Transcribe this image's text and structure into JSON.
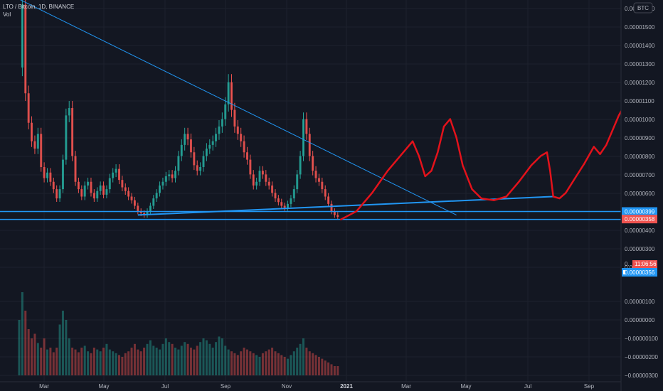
{
  "legend": {
    "symbol_line": "LTO / Bitcoin, 1D, BINANCE",
    "volume_label": "Vol"
  },
  "currency_badge": "BTC",
  "chart_data": {
    "type": "candlestick",
    "title": "LTO / Bitcoin, 1D, BINANCE",
    "price_axis_ticks": [
      "0.00001600",
      "0.00001500",
      "0.00001400",
      "0.00001300",
      "0.00001200",
      "0.00001100",
      "0.00001000",
      "0.00000900",
      "0.00000800",
      "0.00000700",
      "0.00000600",
      "0.00000500",
      "0.00000400",
      "0.00000300",
      "0.00000200"
    ],
    "volume_axis_ticks": [
      "0.00000100",
      "0.00000000",
      "−0.00000100",
      "−0.00000200",
      "−0.00000300"
    ],
    "x_ticks": [
      "Mar",
      "May",
      "Jul",
      "Sep",
      "Nov",
      "2021",
      "Mar",
      "May",
      "Jul",
      "Sep"
    ],
    "price_tags": {
      "resistance": "0.00000399",
      "last_price": "0.00000358",
      "countdown": "11:06:56",
      "support": "0.00000356",
      "partial_tick": "0."
    },
    "price_path": [
      [
        0,
        1180
      ],
      [
        1,
        1520
      ],
      [
        2,
        1040
      ],
      [
        3,
        880
      ],
      [
        4,
        780
      ],
      [
        5,
        740
      ],
      [
        6,
        820
      ],
      [
        7,
        640
      ],
      [
        8,
        580
      ],
      [
        9,
        610
      ],
      [
        10,
        560
      ],
      [
        11,
        520
      ],
      [
        12,
        470
      ],
      [
        13,
        520
      ],
      [
        14,
        680
      ],
      [
        15,
        920
      ],
      [
        16,
        960
      ],
      [
        17,
        700
      ],
      [
        18,
        560
      ],
      [
        19,
        520
      ],
      [
        20,
        480
      ],
      [
        21,
        540
      ],
      [
        22,
        560
      ],
      [
        23,
        500
      ],
      [
        24,
        470
      ],
      [
        25,
        510
      ],
      [
        26,
        540
      ],
      [
        27,
        490
      ],
      [
        28,
        520
      ],
      [
        29,
        580
      ],
      [
        30,
        610
      ],
      [
        31,
        630
      ],
      [
        32,
        570
      ],
      [
        33,
        530
      ],
      [
        34,
        510
      ],
      [
        35,
        480
      ],
      [
        36,
        460
      ],
      [
        37,
        430
      ],
      [
        38,
        400
      ],
      [
        39,
        390
      ],
      [
        40,
        380
      ],
      [
        41,
        400
      ],
      [
        42,
        430
      ],
      [
        43,
        470
      ],
      [
        44,
        500
      ],
      [
        45,
        540
      ],
      [
        46,
        560
      ],
      [
        47,
        590
      ],
      [
        48,
        600
      ],
      [
        49,
        580
      ],
      [
        50,
        620
      ],
      [
        51,
        700
      ],
      [
        52,
        760
      ],
      [
        53,
        820
      ],
      [
        54,
        790
      ],
      [
        55,
        720
      ],
      [
        56,
        650
      ],
      [
        57,
        620
      ],
      [
        58,
        640
      ],
      [
        59,
        700
      ],
      [
        60,
        740
      ],
      [
        61,
        760
      ],
      [
        62,
        780
      ],
      [
        63,
        820
      ],
      [
        64,
        860
      ],
      [
        65,
        900
      ],
      [
        66,
        980
      ],
      [
        67,
        1100
      ],
      [
        68,
        950
      ],
      [
        69,
        860
      ],
      [
        70,
        820
      ],
      [
        71,
        780
      ],
      [
        72,
        720
      ],
      [
        73,
        680
      ],
      [
        74,
        600
      ],
      [
        75,
        540
      ],
      [
        76,
        560
      ],
      [
        77,
        620
      ],
      [
        78,
        600
      ],
      [
        79,
        560
      ],
      [
        80,
        540
      ],
      [
        81,
        500
      ],
      [
        82,
        470
      ],
      [
        83,
        450
      ],
      [
        84,
        430
      ],
      [
        85,
        420
      ],
      [
        86,
        440
      ],
      [
        87,
        470
      ],
      [
        88,
        520
      ],
      [
        89,
        600
      ],
      [
        90,
        700
      ],
      [
        91,
        900
      ],
      [
        92,
        820
      ],
      [
        93,
        700
      ],
      [
        94,
        620
      ],
      [
        95,
        580
      ],
      [
        96,
        560
      ],
      [
        97,
        520
      ],
      [
        98,
        480
      ],
      [
        99,
        440
      ],
      [
        100,
        400
      ],
      [
        101,
        380
      ],
      [
        102,
        370
      ]
    ],
    "trendlines": [
      {
        "name": "descending",
        "from": [
          0,
          1550
        ],
        "to": [
          140,
          380
        ]
      },
      {
        "name": "ascending-support",
        "from": [
          38,
          380
        ],
        "to": [
          171,
          480
        ]
      }
    ],
    "horizontal_lines": [
      {
        "name": "resistance",
        "price": 399
      },
      {
        "name": "support",
        "price": 356
      }
    ],
    "projection_path": [
      [
        103,
        356
      ],
      [
        108,
        400
      ],
      [
        113,
        500
      ],
      [
        118,
        620
      ],
      [
        123,
        720
      ],
      [
        126,
        780
      ],
      [
        128,
        700
      ],
      [
        130,
        590
      ],
      [
        132,
        620
      ],
      [
        134,
        720
      ],
      [
        136,
        860
      ],
      [
        138,
        900
      ],
      [
        140,
        800
      ],
      [
        142,
        650
      ],
      [
        145,
        520
      ],
      [
        148,
        470
      ],
      [
        152,
        460
      ],
      [
        156,
        480
      ],
      [
        160,
        560
      ],
      [
        164,
        650
      ],
      [
        167,
        700
      ],
      [
        169,
        720
      ],
      [
        170,
        620
      ],
      [
        171,
        480
      ],
      [
        173,
        470
      ],
      [
        175,
        500
      ],
      [
        178,
        580
      ],
      [
        181,
        660
      ],
      [
        184,
        750
      ],
      [
        186,
        710
      ],
      [
        188,
        760
      ],
      [
        190,
        840
      ],
      [
        192,
        920
      ],
      [
        194,
        980
      ]
    ],
    "volume_bars": [
      60,
      90,
      70,
      50,
      40,
      45,
      35,
      30,
      40,
      28,
      30,
      25,
      30,
      55,
      70,
      60,
      40,
      30,
      28,
      25,
      30,
      32,
      26,
      24,
      30,
      28,
      26,
      30,
      34,
      28,
      26,
      24,
      22,
      20,
      24,
      26,
      30,
      34,
      28,
      26,
      30,
      34,
      38,
      32,
      30,
      28,
      34,
      40,
      36,
      34,
      30,
      28,
      32,
      36,
      34,
      30,
      28,
      32,
      36,
      40,
      38,
      34,
      30,
      36,
      42,
      40,
      32,
      28,
      26,
      24,
      22,
      26,
      30,
      28,
      26,
      24,
      22,
      20,
      24,
      26,
      28,
      30,
      26,
      24,
      22,
      20,
      18,
      22,
      26,
      30,
      34,
      40,
      30,
      26,
      24,
      22,
      20,
      18,
      16,
      14,
      12,
      10,
      10
    ]
  }
}
